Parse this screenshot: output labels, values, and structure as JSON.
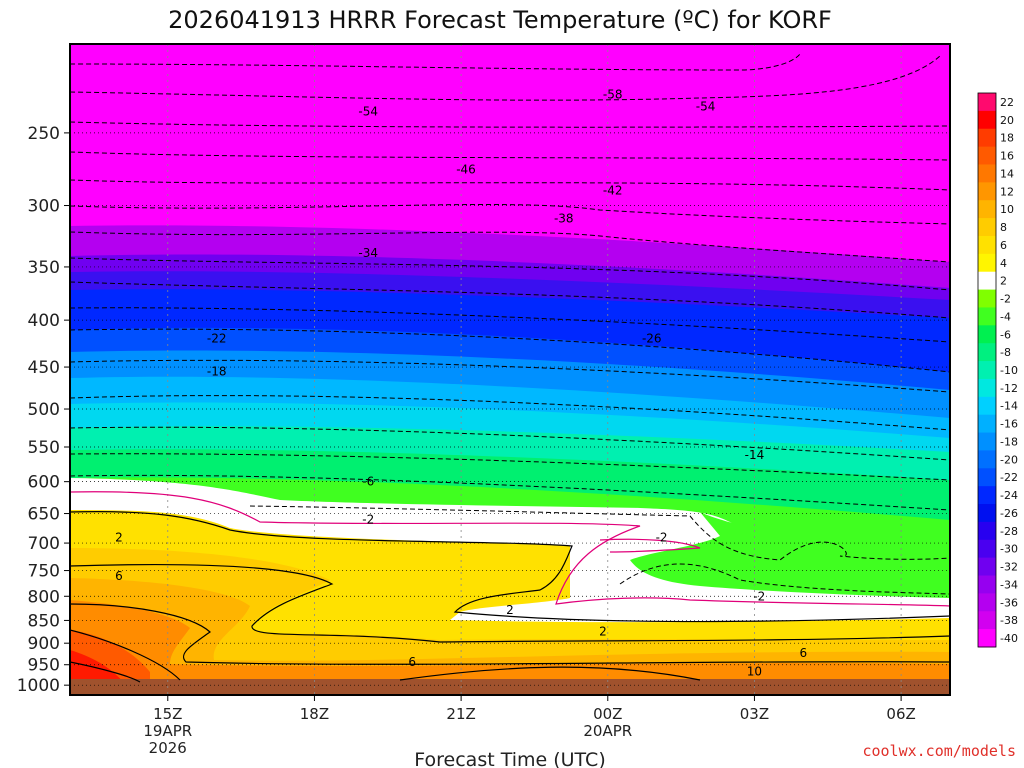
{
  "chart_data": {
    "type": "heatmap",
    "title": "2026041913 HRRR Forecast Temperature (ºC) for KORF",
    "xlabel": "Forecast Time (UTC)",
    "ylabel": "",
    "credit": "coolwx.com/models",
    "y_scale": "log",
    "y_inverted": true,
    "ylim": [
      1025,
      200
    ],
    "y_ticks": [
      250,
      300,
      350,
      400,
      450,
      500,
      550,
      600,
      650,
      700,
      750,
      800,
      850,
      900,
      950,
      1000
    ],
    "xlim_hours": [
      13,
      31
    ],
    "x_ticks": [
      {
        "hour": 15,
        "lines": [
          "15Z",
          "19APR",
          "2026"
        ]
      },
      {
        "hour": 18,
        "lines": [
          "18Z"
        ]
      },
      {
        "hour": 21,
        "lines": [
          "21Z"
        ]
      },
      {
        "hour": 24,
        "lines": [
          "00Z",
          "20APR"
        ]
      },
      {
        "hour": 27,
        "lines": [
          "03Z"
        ]
      },
      {
        "hour": 30,
        "lines": [
          "06Z"
        ]
      }
    ],
    "grid": true,
    "colorbar": {
      "placement": "right",
      "labels": [
        "22",
        "20",
        "18",
        "16",
        "14",
        "12",
        "10",
        "8",
        "6",
        "4",
        "2",
        "-2",
        "-4",
        "-6",
        "-8",
        "-10",
        "-12",
        "-14",
        "-16",
        "-18",
        "-20",
        "-22",
        "-24",
        "-26",
        "-28",
        "-30",
        "-32",
        "-34",
        "-36",
        "-38",
        "-40"
      ],
      "colors": [
        "#ff0a6e",
        "#ff0000",
        "#ff3c00",
        "#ff5a00",
        "#ff7800",
        "#ff9600",
        "#ffb400",
        "#ffcc00",
        "#ffe100",
        "#fff500",
        "#ffffff",
        "#80ff00",
        "#40ff20",
        "#00f050",
        "#00f080",
        "#00f0b0",
        "#00e8e0",
        "#00d0ff",
        "#00b0ff",
        "#0090ff",
        "#0070ff",
        "#0050ff",
        "#0028ff",
        "#0010f0",
        "#2800f0",
        "#4a00f0",
        "#7000f0",
        "#9600f0",
        "#b400f0",
        "#d200f0",
        "#ff00ff"
      ]
    },
    "contour_labels": [
      {
        "text": "-58",
        "hour": 24.1,
        "p": 227
      },
      {
        "text": "-54",
        "hour": 19.1,
        "p": 237
      },
      {
        "text": "-54",
        "hour": 26.0,
        "p": 234
      },
      {
        "text": "-46",
        "hour": 21.1,
        "p": 274
      },
      {
        "text": "-42",
        "hour": 24.1,
        "p": 289
      },
      {
        "text": "-38",
        "hour": 23.1,
        "p": 310
      },
      {
        "text": "-34",
        "hour": 19.1,
        "p": 338
      },
      {
        "text": "-26",
        "hour": 24.9,
        "p": 419
      },
      {
        "text": "-22",
        "hour": 16.0,
        "p": 419
      },
      {
        "text": "-18",
        "hour": 16.0,
        "p": 455
      },
      {
        "text": "-14",
        "hour": 27.0,
        "p": 561
      },
      {
        "text": "-6",
        "hour": 19.1,
        "p": 600
      },
      {
        "text": "-2",
        "hour": 19.1,
        "p": 660
      },
      {
        "text": "-2",
        "hour": 25.1,
        "p": 690
      },
      {
        "text": "-2",
        "hour": 27.1,
        "p": 800
      },
      {
        "text": "2",
        "hour": 14.0,
        "p": 690
      },
      {
        "text": "6",
        "hour": 14.0,
        "p": 760
      },
      {
        "text": "2",
        "hour": 22.0,
        "p": 828
      },
      {
        "text": "2",
        "hour": 23.9,
        "p": 874
      },
      {
        "text": "6",
        "hour": 20.0,
        "p": 943
      },
      {
        "text": "6",
        "hour": 28.0,
        "p": 922
      },
      {
        "text": "10",
        "hour": 27.0,
        "p": 966
      }
    ]
  }
}
